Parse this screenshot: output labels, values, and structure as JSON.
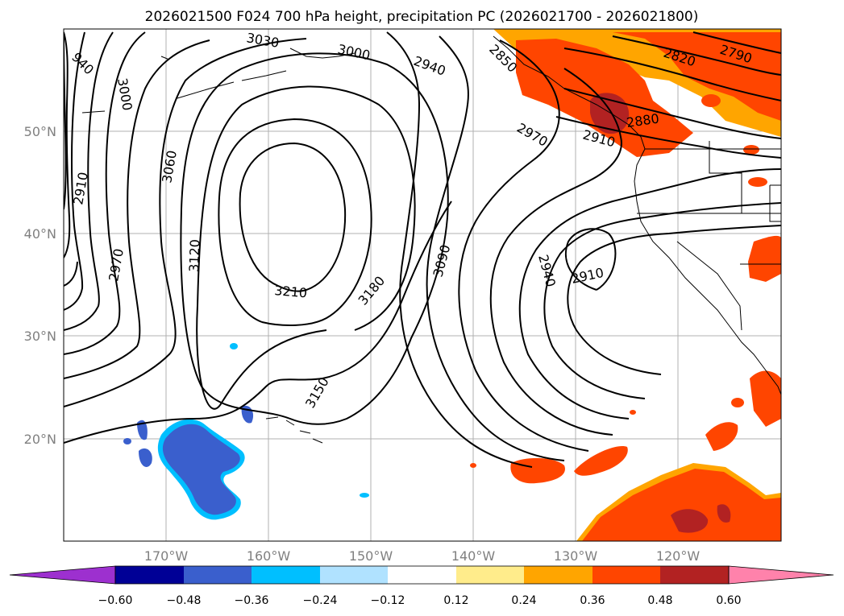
{
  "title": "2026021500 F024 700 hPa height, precipitation PC (2026021700 - 2026021800)",
  "lat_labels": [
    "50°N",
    "40°N",
    "30°N",
    "20°N"
  ],
  "lon_labels": [
    "170°W",
    "160°W",
    "150°W",
    "140°W",
    "130°W",
    "120°W"
  ],
  "contour_labels": [
    "940",
    "3030",
    "3000",
    "2940",
    "2850",
    "2820",
    "2790",
    "3000",
    "2880",
    "2910",
    "2970",
    "3060",
    "2910",
    "3120",
    "2970",
    "3210",
    "3180",
    "3090",
    "2940",
    "2910",
    "3150"
  ],
  "colorbar": {
    "colors": [
      "#9d30cf",
      "#000096",
      "#3a5fcd",
      "#00bfff",
      "#b0e2ff",
      "#ffffff",
      "#ffec8b",
      "#ffa500",
      "#ff4500",
      "#b22222",
      "#ff82ab"
    ],
    "tick_labels": [
      "−0.60",
      "−0.48",
      "−0.36",
      "−0.24",
      "−0.12",
      "0.12",
      "0.24",
      "0.36",
      "0.48",
      "0.60"
    ]
  },
  "colors": {
    "precip_pos": "#ff4500",
    "precip_strong": "#b22222",
    "precip_neg": "#3a5fcd",
    "precip_edge": "#ffa500",
    "precip_neg_edge": "#00bfff"
  }
}
